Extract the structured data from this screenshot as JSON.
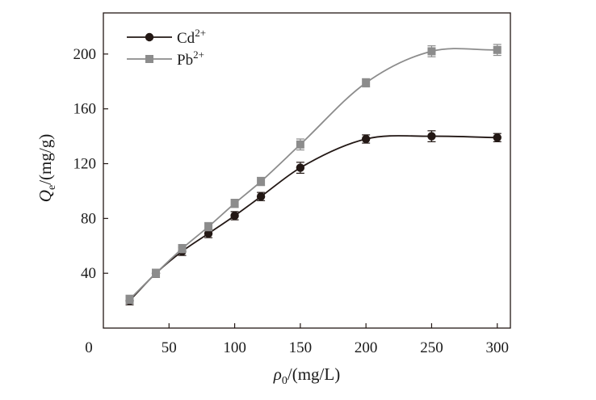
{
  "chart_data": {
    "type": "line",
    "xlabel": {
      "symbol": "ρ",
      "sub": "0",
      "unit": "/(mg/L)"
    },
    "ylabel": {
      "symbol": "Q",
      "sub": "e",
      "unit": "/(mg/g)"
    },
    "xlim": [
      0,
      310
    ],
    "ylim": [
      0,
      230
    ],
    "xticks": [
      50,
      100,
      150,
      200,
      250,
      300
    ],
    "yticks": [
      40,
      80,
      120,
      160,
      200
    ],
    "origin_label": "0",
    "grid": false,
    "legend_position": "top-left",
    "series": [
      {
        "name": "Cd",
        "sup": "2+",
        "marker": "circle",
        "color": "#231815",
        "x": [
          20,
          40,
          60,
          80,
          100,
          120,
          150,
          200,
          250,
          300
        ],
        "y": [
          20,
          40,
          56,
          69,
          82,
          96,
          117,
          138,
          140,
          139
        ],
        "err": [
          3,
          3,
          3,
          3,
          3,
          3,
          4,
          3,
          4,
          3
        ]
      },
      {
        "name": "Pb",
        "sup": "2+",
        "marker": "square",
        "color": "#8c8c8c",
        "x": [
          20,
          40,
          60,
          80,
          100,
          120,
          150,
          200,
          250,
          300
        ],
        "y": [
          21,
          40,
          58,
          74,
          91,
          107,
          134,
          179,
          202,
          203
        ],
        "err": [
          3,
          3,
          3,
          3,
          3,
          3,
          4,
          3,
          4,
          4
        ]
      }
    ]
  }
}
